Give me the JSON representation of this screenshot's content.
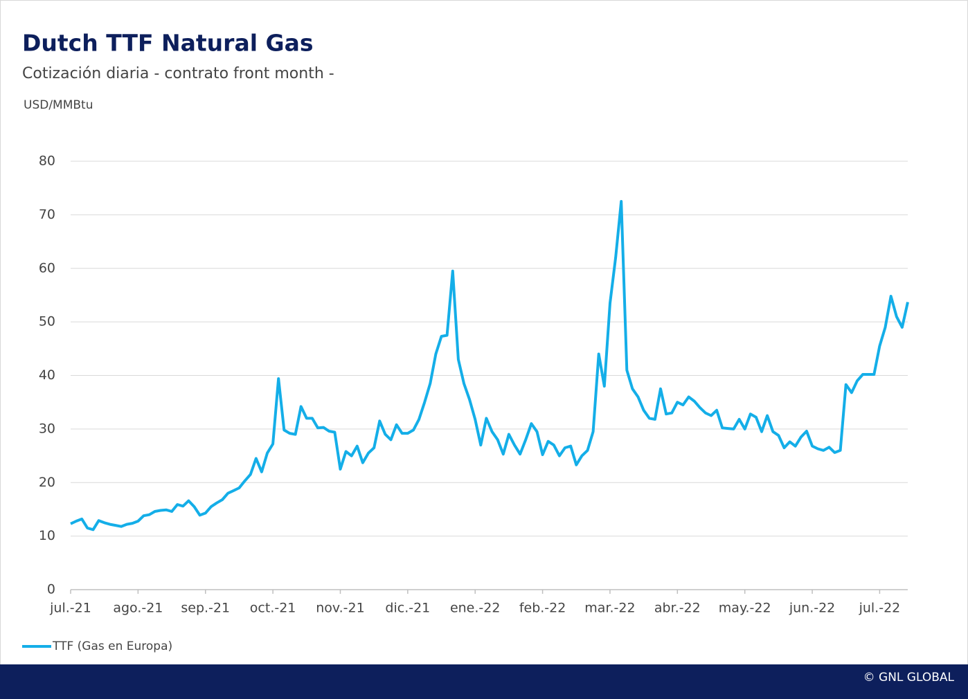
{
  "chart_data": {
    "type": "line",
    "title": "Dutch TTF Natural Gas",
    "subtitle": "Cotización diaria - contrato front month -",
    "y_label": "USD/MMBtu",
    "categories": [
      "jul.-21",
      null,
      null,
      null,
      null,
      null,
      null,
      null,
      null,
      null,
      null,
      null,
      "ago.-21",
      null,
      null,
      null,
      null,
      null,
      null,
      null,
      null,
      null,
      null,
      null,
      "sep.-21",
      null,
      null,
      null,
      null,
      null,
      null,
      null,
      null,
      null,
      null,
      null,
      "oct.-21",
      null,
      null,
      null,
      null,
      null,
      null,
      null,
      null,
      null,
      null,
      null,
      "nov.-21",
      null,
      null,
      null,
      null,
      null,
      null,
      null,
      null,
      null,
      null,
      null,
      "dic.-21",
      null,
      null,
      null,
      null,
      null,
      null,
      null,
      null,
      null,
      null,
      null,
      "ene.-22",
      null,
      null,
      null,
      null,
      null,
      null,
      null,
      null,
      null,
      null,
      null,
      "feb.-22",
      null,
      null,
      null,
      null,
      null,
      null,
      null,
      null,
      null,
      null,
      null,
      "mar.-22",
      null,
      null,
      null,
      null,
      null,
      null,
      null,
      null,
      null,
      null,
      null,
      "abr.-22",
      null,
      null,
      null,
      null,
      null,
      null,
      null,
      null,
      null,
      null,
      null,
      "may.-22",
      null,
      null,
      null,
      null,
      null,
      null,
      null,
      null,
      null,
      null,
      null,
      "jun.-22",
      null,
      null,
      null,
      null,
      null,
      null,
      null,
      null,
      null,
      null,
      null,
      "jul.-22",
      null,
      null,
      null,
      null,
      null
    ],
    "series": [
      {
        "name": "TTF (Gas en Europa)",
        "color": "#14aee8",
        "values": [
          12.3,
          12.8,
          13.2,
          11.5,
          11.2,
          12.9,
          12.5,
          12.2,
          12.0,
          11.8,
          12.2,
          12.4,
          12.8,
          13.8,
          14.0,
          14.6,
          14.8,
          14.9,
          14.6,
          15.9,
          15.6,
          16.6,
          15.5,
          13.9,
          14.3,
          15.5,
          16.2,
          16.8,
          18.0,
          18.5,
          19.0,
          20.3,
          21.5,
          24.5,
          22.0,
          25.5,
          27.2,
          39.4,
          29.8,
          29.2,
          29.0,
          34.2,
          32.0,
          32.0,
          30.2,
          30.3,
          29.6,
          29.4,
          22.5,
          25.8,
          25.0,
          26.8,
          23.7,
          25.5,
          26.5,
          31.5,
          29.0,
          28.0,
          30.8,
          29.2,
          29.2,
          29.8,
          31.8,
          35.0,
          38.5,
          44.0,
          47.3,
          47.5,
          59.5,
          43.0,
          38.5,
          35.5,
          31.8,
          27.0,
          32.0,
          29.5,
          28.0,
          25.3,
          29.0,
          27.0,
          25.3,
          28.0,
          31.0,
          29.5,
          25.2,
          27.7,
          27.0,
          25.0,
          26.5,
          26.8,
          23.3,
          25.0,
          26.0,
          29.5,
          44.0,
          38.0,
          53.5,
          62.0,
          72.5,
          41.0,
          37.5,
          36.0,
          33.5,
          32.0,
          31.8,
          37.5,
          32.8,
          33.0,
          35.0,
          34.5,
          36.0,
          35.2,
          34.0,
          33.0,
          32.5,
          33.5,
          30.2,
          30.1,
          30.0,
          31.8,
          30.0,
          32.8,
          32.2,
          29.5,
          32.5,
          29.5,
          28.8,
          26.5,
          27.6,
          26.8,
          28.5,
          29.6,
          26.8,
          26.3,
          26.0,
          26.6,
          25.6,
          26.0,
          38.3,
          36.8,
          39.0,
          40.2,
          40.2,
          40.2,
          45.5,
          49.0,
          54.8,
          51.0,
          49.0,
          53.7
        ]
      }
    ],
    "ylim": [
      0,
      80
    ],
    "yticks": [
      0,
      10,
      20,
      30,
      40,
      50,
      60,
      70,
      80
    ],
    "grid": true,
    "legend": "bottom-left",
    "footer": "© GNL GLOBAL"
  }
}
